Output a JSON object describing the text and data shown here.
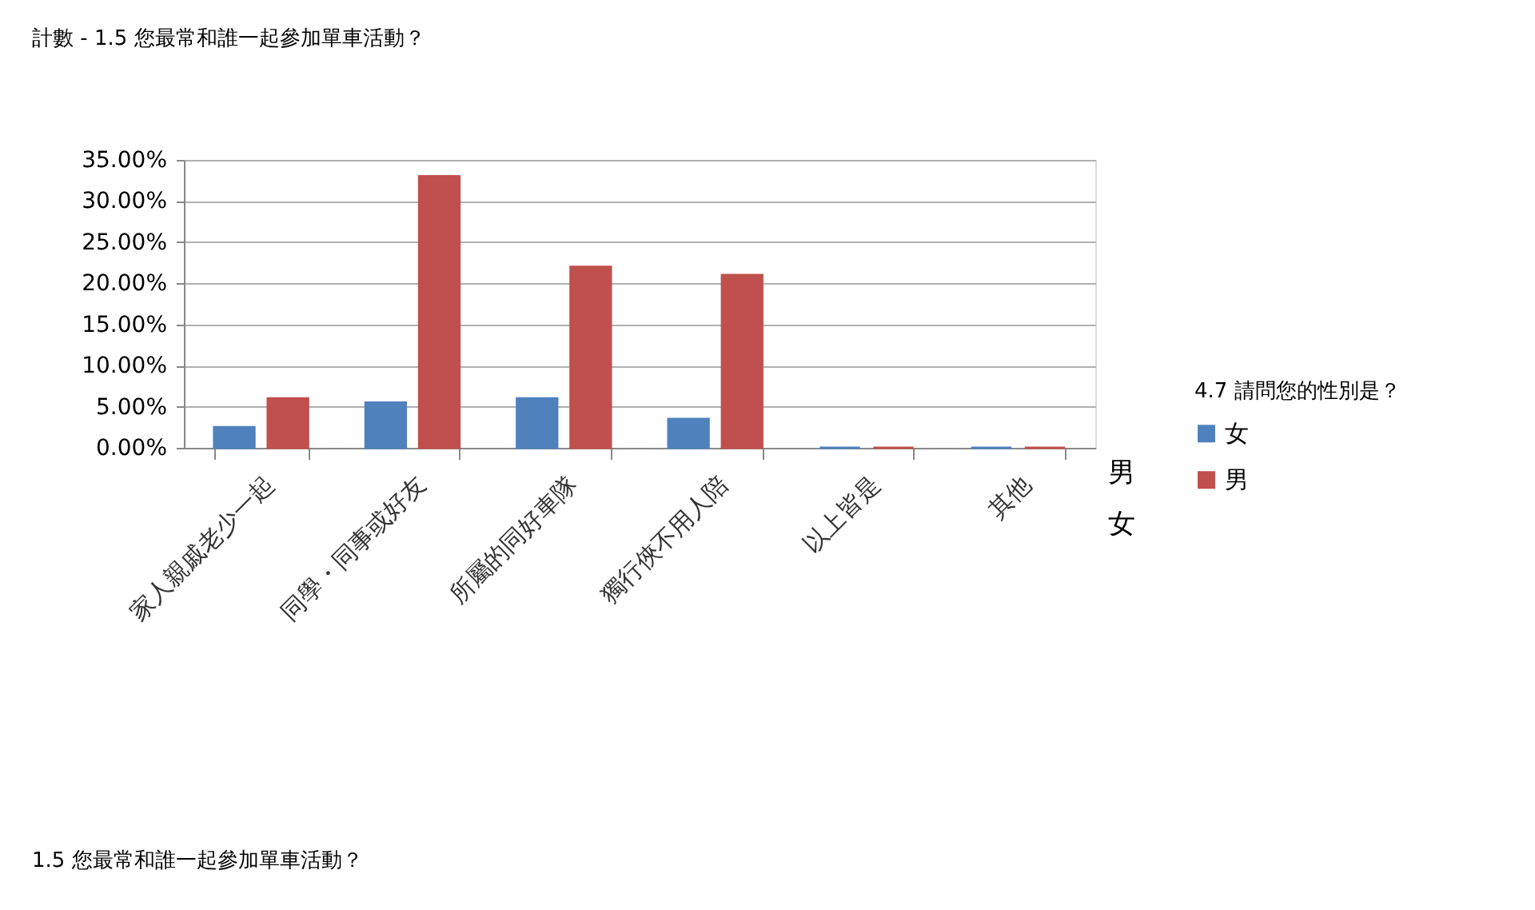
{
  "chart_data": {
    "type": "bar",
    "title": "計數 - 1.5 您最常和誰一起參加單車活動？",
    "annotations": [
      "1.5 您最常和誰一起參加單車活動？"
    ],
    "legend_title": "4.7 請問您的性別是？",
    "categories": [
      "家人親戚老少一起",
      "同學・同事或好友",
      "所屬的同好車隊",
      "獨行俠不用人陪",
      "以上皆是",
      "其他"
    ],
    "series": [
      {
        "name": "女",
        "color": "#4f81bd",
        "values": [
          2.5,
          5.5,
          6,
          3.5,
          0,
          0
        ]
      },
      {
        "name": "男",
        "color": "#c0504d",
        "values": [
          6,
          33,
          22,
          21,
          0,
          0
        ]
      }
    ],
    "ylim": [
      0,
      35
    ],
    "yticks": [
      {
        "value": 0,
        "label": "0.00%"
      },
      {
        "value": 5,
        "label": "5.00%"
      },
      {
        "value": 10,
        "label": "10.00%"
      },
      {
        "value": 15,
        "label": "15.00%"
      },
      {
        "value": 20,
        "label": "20.00%"
      },
      {
        "value": 25,
        "label": "25.00%"
      },
      {
        "value": 30,
        "label": "30.00%"
      },
      {
        "value": 35,
        "label": "35.00%"
      }
    ],
    "grid": "y",
    "legend": "right"
  }
}
